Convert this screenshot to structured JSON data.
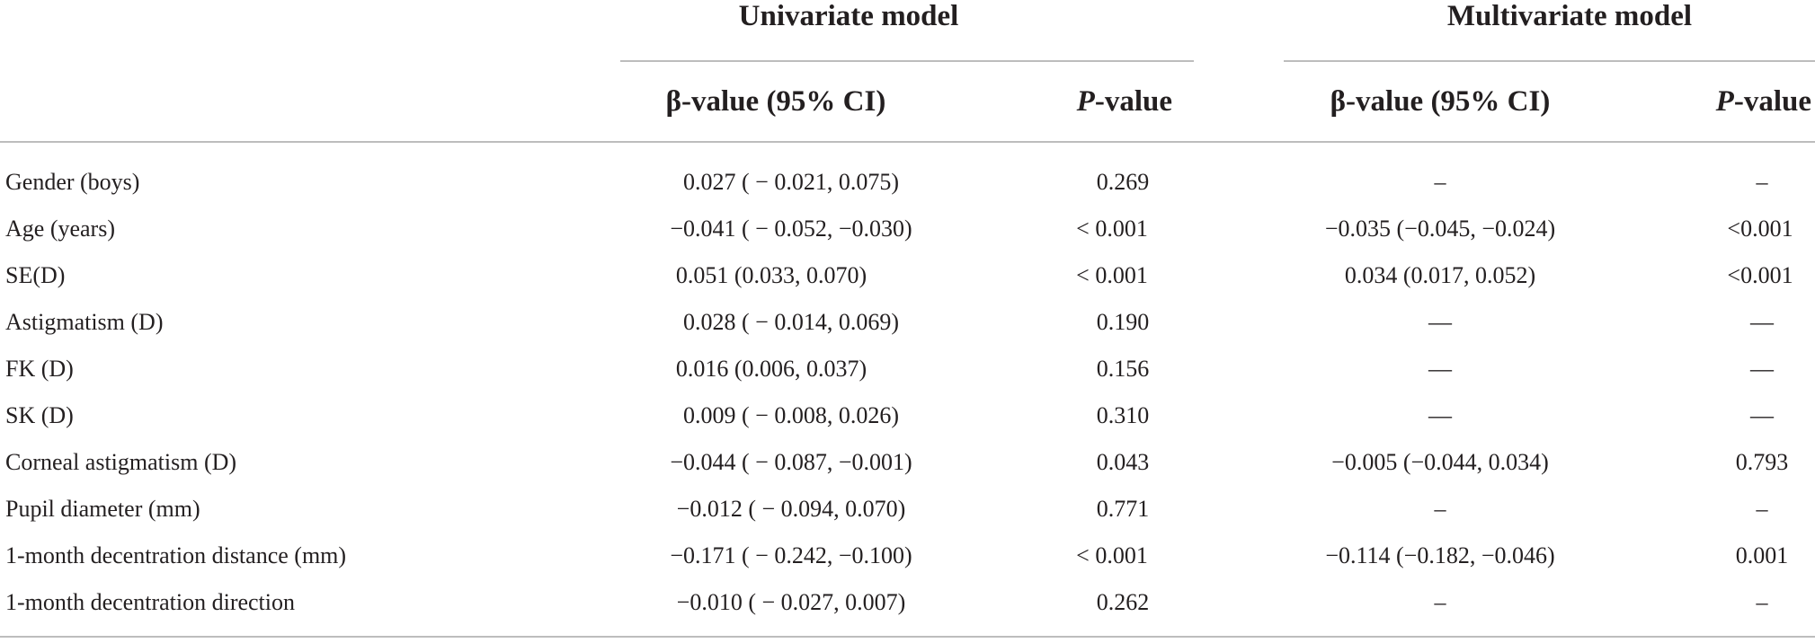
{
  "table": {
    "groups": [
      {
        "label": "Univariate model"
      },
      {
        "label": "Multivariate model"
      }
    ],
    "subheaders": {
      "beta": "β-value (95% CI)",
      "p_italic": "P",
      "p_rest": "-value"
    },
    "rows": [
      {
        "label": "Gender (boys)",
        "uni_beta": "0.027 ( − 0.021, 0.075)",
        "uni_p": "0.269",
        "multi_beta": "–",
        "multi_p": "–"
      },
      {
        "label": "Age (years)",
        "uni_beta": "−0.041 ( − 0.052, −0.030)",
        "uni_p": "< 0.001",
        "multi_beta": "−0.035 (−0.045, −0.024)",
        "multi_p": "<0.001"
      },
      {
        "label": "SE(D)",
        "uni_beta": "0.051 (0.033, 0.070)",
        "uni_p": "< 0.001",
        "multi_beta": "0.034 (0.017, 0.052)",
        "multi_p": "<0.001"
      },
      {
        "label": "Astigmatism (D)",
        "uni_beta": "0.028 ( − 0.014, 0.069)",
        "uni_p": "0.190",
        "multi_beta": "—",
        "multi_p": "—"
      },
      {
        "label": "FK (D)",
        "uni_beta": "0.016 (0.006, 0.037)",
        "uni_p": "0.156",
        "multi_beta": "—",
        "multi_p": "—"
      },
      {
        "label": "SK (D)",
        "uni_beta": "0.009 ( − 0.008, 0.026)",
        "uni_p": "0.310",
        "multi_beta": "—",
        "multi_p": "—"
      },
      {
        "label": "Corneal astigmatism (D)",
        "uni_beta": "−0.044 ( − 0.087, −0.001)",
        "uni_p": "0.043",
        "multi_beta": "−0.005 (−0.044, 0.034)",
        "multi_p": "0.793"
      },
      {
        "label": "Pupil diameter (mm)",
        "uni_beta": "−0.012 ( − 0.094, 0.070)",
        "uni_p": "0.771",
        "multi_beta": "–",
        "multi_p": "–"
      },
      {
        "label": "1-month decentration distance (mm)",
        "uni_beta": "−0.171 ( − 0.242, −0.100)",
        "uni_p": "< 0.001",
        "multi_beta": "−0.114 (−0.182, −0.046)",
        "multi_p": "0.001"
      },
      {
        "label": "1-month decentration direction",
        "uni_beta": "−0.010 ( − 0.027, 0.007)",
        "uni_p": "0.262",
        "multi_beta": "–",
        "multi_p": "–"
      }
    ]
  }
}
